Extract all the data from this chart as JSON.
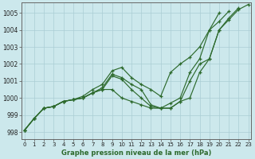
{
  "title": "Graphe pression niveau de la mer (hPa)",
  "bg_color": "#cce8ec",
  "grid_color": "#aacdd4",
  "line_color": "#2d6a2d",
  "xlim": [
    -0.3,
    23.3
  ],
  "ylim": [
    997.6,
    1005.6
  ],
  "xticks": [
    0,
    1,
    2,
    3,
    4,
    5,
    6,
    7,
    8,
    9,
    10,
    11,
    12,
    13,
    14,
    15,
    16,
    17,
    18,
    19,
    20,
    21,
    22,
    23
  ],
  "yticks": [
    998,
    999,
    1000,
    1001,
    1002,
    1003,
    1004,
    1005
  ],
  "series": [
    {
      "x": [
        0,
        1,
        2,
        3,
        4,
        5,
        6,
        7,
        8,
        9,
        10,
        11,
        12,
        13,
        14,
        15,
        16,
        17,
        18,
        19,
        20,
        21,
        22,
        23
      ],
      "y": [
        998.1,
        998.8,
        999.4,
        999.5,
        999.8,
        999.9,
        1000.0,
        1000.3,
        1000.5,
        1001.3,
        1001.1,
        1000.5,
        1000.0,
        999.5,
        999.4,
        999.4,
        999.8,
        1000.0,
        1001.5,
        1002.3,
        1004.0,
        1004.6,
        1005.2,
        1005.5
      ]
    },
    {
      "x": [
        0,
        1,
        2,
        3,
        4,
        5,
        6,
        7,
        8,
        9,
        10,
        11,
        12,
        13,
        14,
        15,
        16,
        17,
        18,
        19,
        20,
        21,
        22,
        23
      ],
      "y": [
        998.1,
        998.8,
        999.4,
        999.5,
        999.8,
        999.9,
        1000.0,
        1000.3,
        1000.6,
        1001.4,
        1001.2,
        1000.8,
        1000.5,
        999.6,
        999.4,
        999.4,
        999.8,
        1001.0,
        1002.0,
        1002.3,
        1004.0,
        1004.7,
        1005.3,
        null
      ]
    },
    {
      "x": [
        0,
        1,
        2,
        3,
        4,
        5,
        6,
        7,
        8,
        9,
        10,
        11,
        12,
        13,
        14,
        15,
        16,
        17,
        18,
        19,
        20,
        21,
        22,
        23
      ],
      "y": [
        998.1,
        998.8,
        999.4,
        999.5,
        999.8,
        999.9,
        1000.0,
        1000.3,
        1000.5,
        1000.5,
        1000.0,
        999.8,
        999.6,
        999.4,
        999.4,
        999.7,
        1000.0,
        1001.5,
        1002.3,
        1004.0,
        1004.5,
        1005.1,
        null,
        null
      ]
    },
    {
      "x": [
        0,
        1,
        2,
        3,
        4,
        5,
        6,
        7,
        8,
        9,
        10,
        11,
        12,
        13,
        14,
        15,
        16,
        17,
        18,
        19,
        20,
        21,
        22,
        23
      ],
      "y": [
        998.1,
        998.8,
        999.4,
        999.5,
        999.8,
        999.9,
        1000.1,
        1000.5,
        1000.8,
        1001.6,
        1001.8,
        1001.2,
        1000.8,
        1000.5,
        1000.1,
        1001.5,
        1002.0,
        1002.4,
        1003.0,
        1004.0,
        1005.0,
        null,
        null,
        null
      ]
    }
  ]
}
